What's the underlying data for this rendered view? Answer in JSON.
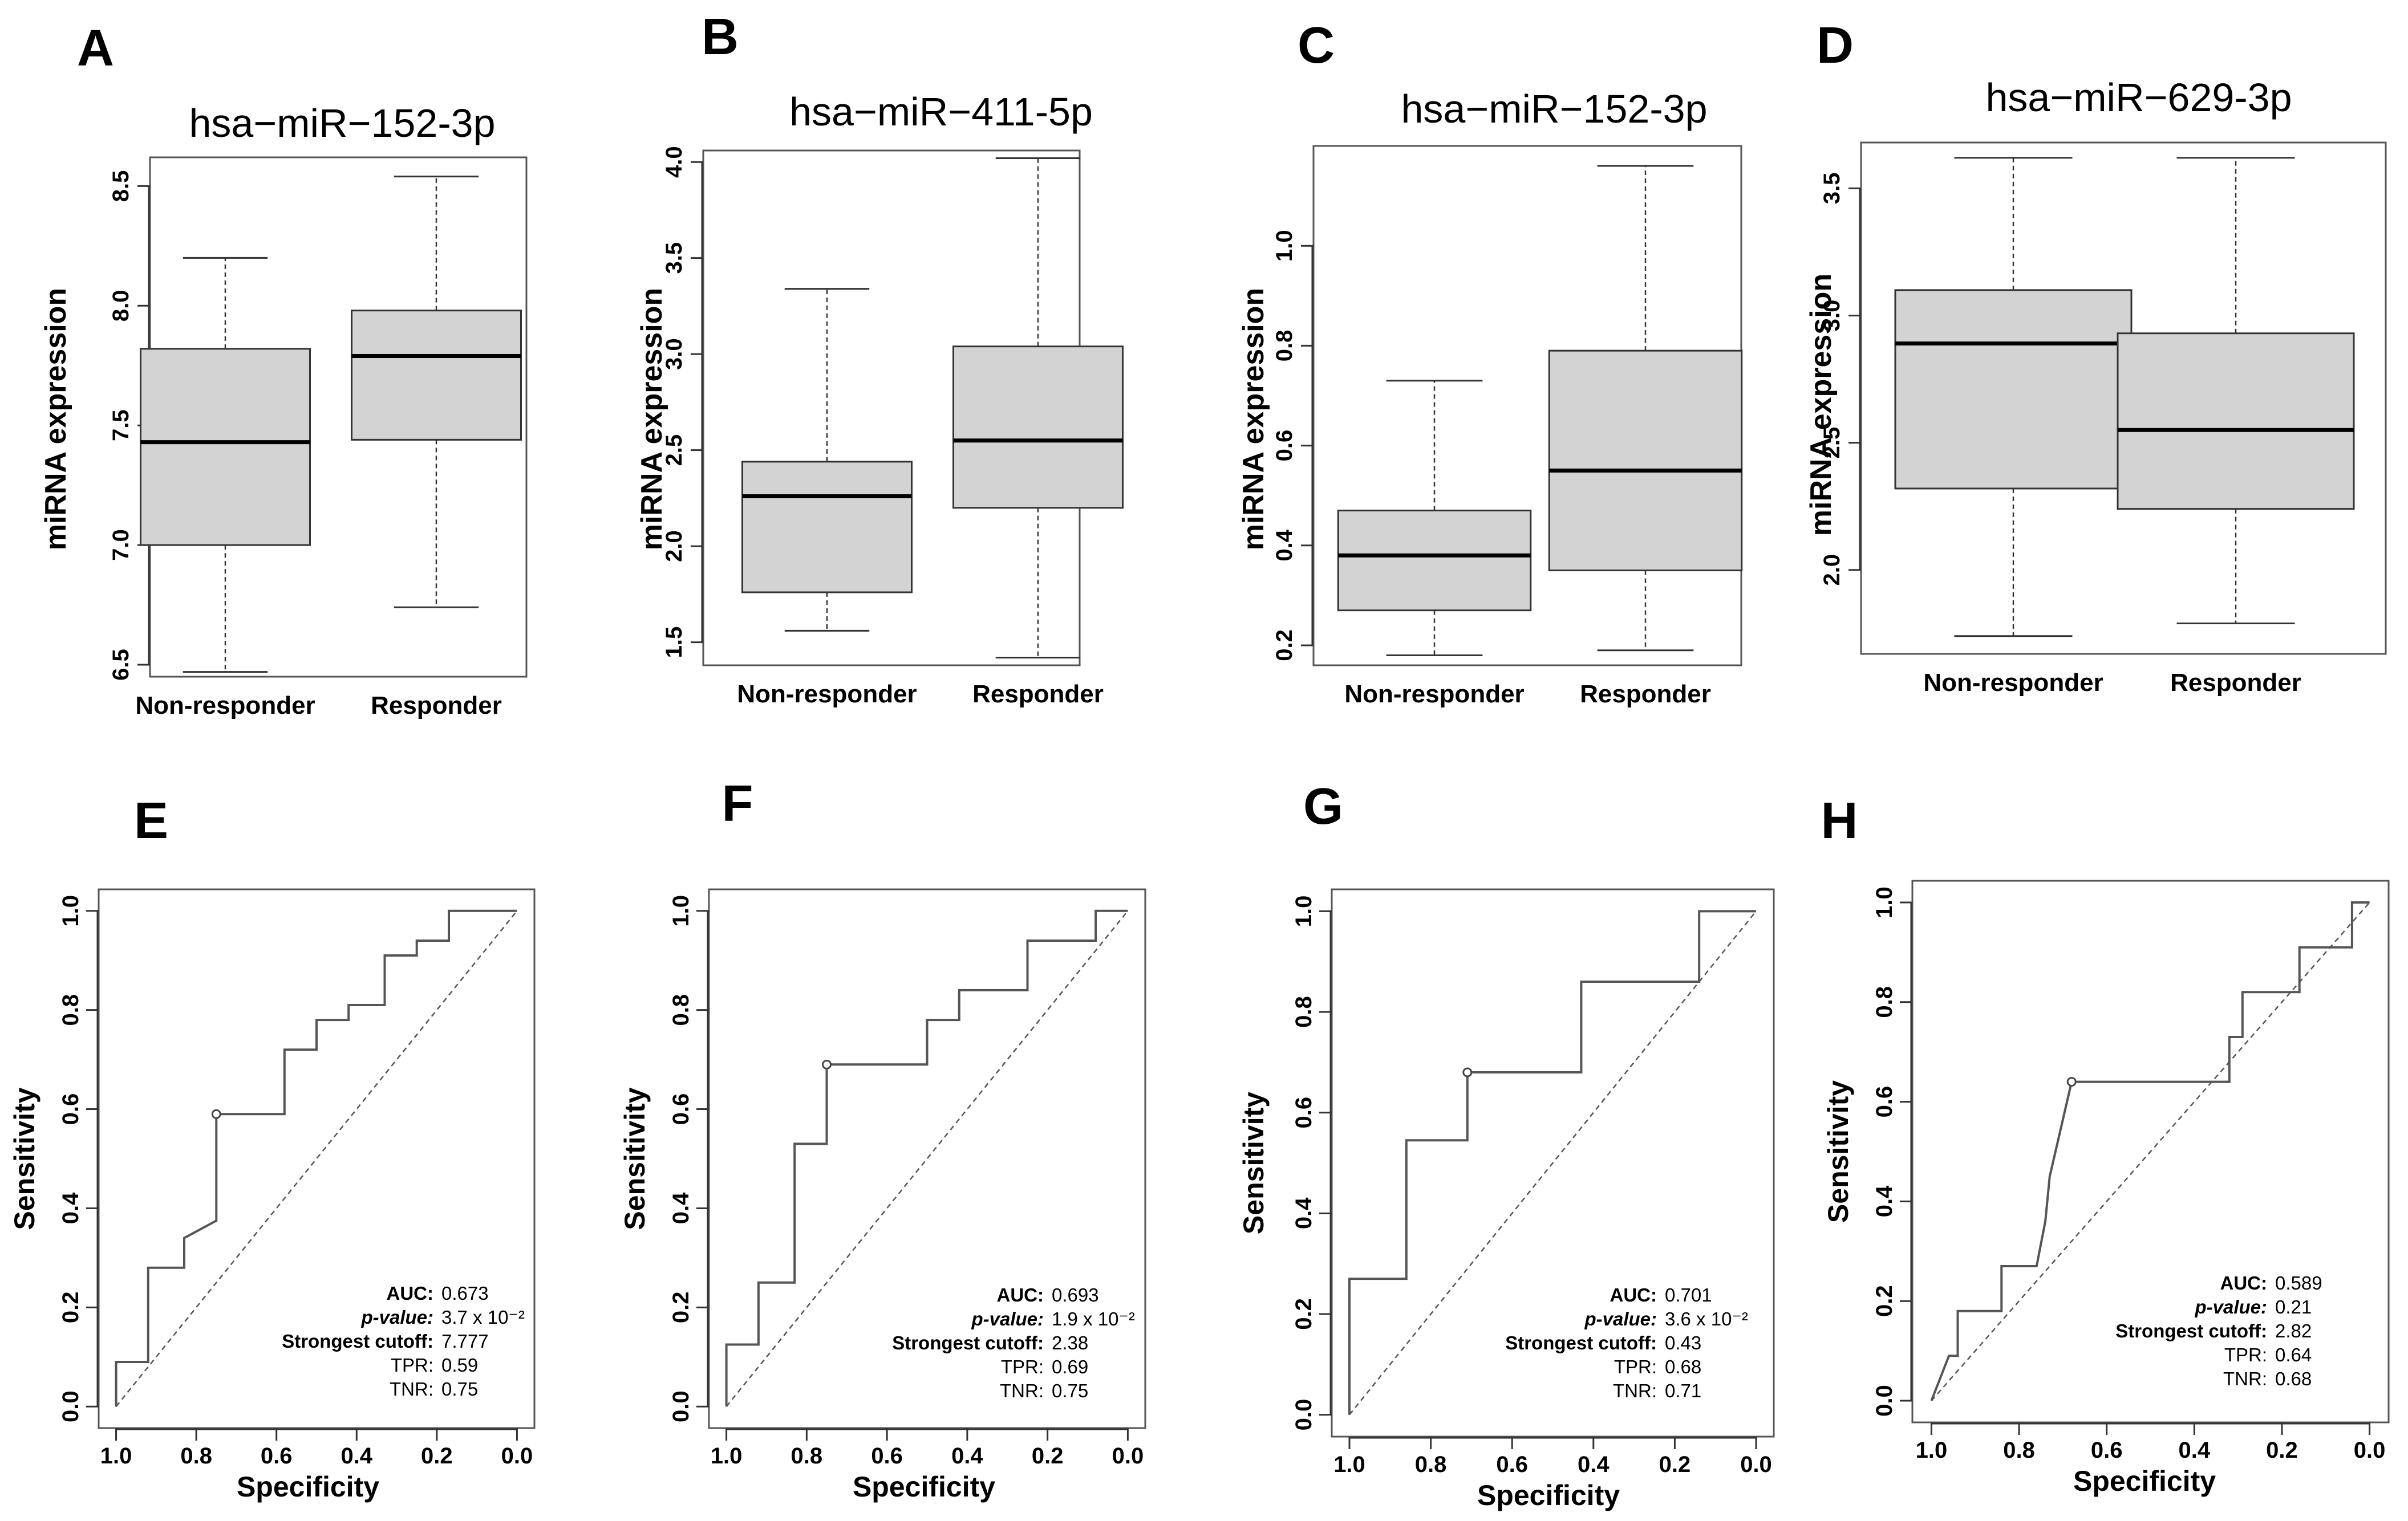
{
  "chart_data": [
    {
      "panel": "A",
      "type": "box",
      "title": "hsa−miR−152-3p",
      "ylabel": "miRNA expression",
      "ylim": [
        6.45,
        8.62
      ],
      "yticks": [
        6.5,
        7.0,
        7.5,
        8.0,
        8.5
      ],
      "ytick_labels": [
        "6.5",
        "7.0",
        "7.5",
        "8.0",
        "8.5"
      ],
      "categories": [
        "Non-responder",
        "Responder"
      ],
      "boxes": [
        {
          "min": 6.47,
          "q1": 7.0,
          "median": 7.43,
          "q3": 7.82,
          "max": 8.2
        },
        {
          "min": 6.74,
          "q1": 7.44,
          "median": 7.79,
          "q3": 7.98,
          "max": 8.54
        }
      ]
    },
    {
      "panel": "B",
      "type": "box",
      "title": "hsa−miR−411-5p",
      "ylabel": "miRNA expression",
      "ylim": [
        1.38,
        4.06
      ],
      "yticks": [
        1.5,
        2.0,
        2.5,
        3.0,
        3.5,
        4.0
      ],
      "ytick_labels": [
        "1.5",
        "2.0",
        "2.5",
        "3.0",
        "3.5",
        "4.0"
      ],
      "categories": [
        "Non-responder",
        "Responder"
      ],
      "boxes": [
        {
          "min": 1.56,
          "q1": 1.76,
          "median": 2.26,
          "q3": 2.44,
          "max": 3.34
        },
        {
          "min": 1.42,
          "q1": 2.2,
          "median": 2.55,
          "q3": 3.04,
          "max": 4.02
        }
      ]
    },
    {
      "panel": "C",
      "type": "box",
      "title": "hsa−miR−152-3p",
      "ylabel": "miRNA expression",
      "ylim": [
        0.16,
        1.2
      ],
      "yticks": [
        0.2,
        0.4,
        0.6,
        0.8,
        1.0
      ],
      "ytick_labels": [
        "0.2",
        "0.4",
        "0.6",
        "0.8",
        "1.0"
      ],
      "categories": [
        "Non-responder",
        "Responder"
      ],
      "boxes": [
        {
          "min": 0.18,
          "q1": 0.27,
          "median": 0.38,
          "q3": 0.47,
          "max": 0.73
        },
        {
          "min": 0.19,
          "q1": 0.35,
          "median": 0.55,
          "q3": 0.79,
          "max": 1.16
        }
      ]
    },
    {
      "panel": "D",
      "type": "box",
      "title": "hsa−miR−629-3p",
      "ylabel": "miRNA expression",
      "ylim": [
        1.67,
        3.68
      ],
      "yticks": [
        2.0,
        2.5,
        3.0,
        3.5
      ],
      "ytick_labels": [
        "2.0",
        "2.5",
        "3.0",
        "3.5"
      ],
      "categories": [
        "Non-responder",
        "Responder"
      ],
      "boxes": [
        {
          "min": 1.74,
          "q1": 2.32,
          "median": 2.89,
          "q3": 3.1,
          "max": 3.62
        },
        {
          "min": 1.79,
          "q1": 2.24,
          "median": 2.55,
          "q3": 2.93,
          "max": 3.62
        }
      ]
    },
    {
      "panel": "E",
      "type": "line",
      "subtype": "roc",
      "xlabel": "Specificity",
      "ylabel": "Sensitivity",
      "xlim": [
        1.0,
        0.0
      ],
      "ylim": [
        0.0,
        1.0
      ],
      "ticks": [
        0.0,
        0.2,
        0.4,
        0.6,
        0.8,
        1.0
      ],
      "tick_labels": [
        "0.0",
        "0.2",
        "0.4",
        "0.6",
        "0.8",
        "1.0"
      ],
      "curve_specificity": [
        1.0,
        1.0,
        0.92,
        0.92,
        0.83,
        0.83,
        0.75,
        0.75,
        0.58,
        0.58,
        0.5,
        0.5,
        0.42,
        0.42,
        0.33,
        0.33,
        0.25,
        0.25,
        0.17,
        0.17,
        0.0
      ],
      "curve_sensitivity": [
        0.0,
        0.09,
        0.09,
        0.28,
        0.28,
        0.34,
        0.375,
        0.59,
        0.59,
        0.72,
        0.72,
        0.78,
        0.78,
        0.81,
        0.81,
        0.91,
        0.91,
        0.94,
        0.94,
        1.0,
        1.0
      ],
      "cutoff_point": [
        0.75,
        0.59
      ],
      "stats": [
        {
          "label": "AUC:",
          "value": "0.673"
        },
        {
          "label": "p-value:",
          "value": "3.7 x 10⁻²"
        },
        {
          "label": "Strongest cutoff:",
          "value": "7.777"
        },
        {
          "label": "TPR:",
          "value": "0.59"
        },
        {
          "label": "TNR:",
          "value": "0.75"
        }
      ]
    },
    {
      "panel": "F",
      "type": "line",
      "subtype": "roc",
      "xlabel": "Specificity",
      "ylabel": "Sensitivity",
      "xlim": [
        1.0,
        0.0
      ],
      "ylim": [
        0.0,
        1.0
      ],
      "ticks": [
        0.0,
        0.2,
        0.4,
        0.6,
        0.8,
        1.0
      ],
      "tick_labels": [
        "0.0",
        "0.2",
        "0.4",
        "0.6",
        "0.8",
        "1.0"
      ],
      "curve_specificity": [
        1.0,
        1.0,
        0.92,
        0.92,
        0.83,
        0.83,
        0.75,
        0.75,
        0.5,
        0.5,
        0.42,
        0.42,
        0.25,
        0.25,
        0.08,
        0.08,
        0.0
      ],
      "curve_specificity_note": "",
      "curve_sensitivity": [
        0.0,
        0.125,
        0.125,
        0.25,
        0.25,
        0.53,
        0.53,
        0.69,
        0.69,
        0.78,
        0.78,
        0.84,
        0.84,
        0.94,
        0.94,
        1.0,
        1.0
      ],
      "cutoff_point": [
        0.75,
        0.69
      ],
      "stats": [
        {
          "label": "AUC:",
          "value": "0.693"
        },
        {
          "label": "p-value:",
          "value": "1.9 x 10⁻²"
        },
        {
          "label": "Strongest cutoff:",
          "value": "2.38"
        },
        {
          "label": "TPR:",
          "value": "0.69"
        },
        {
          "label": "TNR:",
          "value": "0.75"
        }
      ]
    },
    {
      "panel": "G",
      "type": "line",
      "subtype": "roc",
      "xlabel": "Specificity",
      "ylabel": "Sensitivity",
      "xlim": [
        1.0,
        0.0
      ],
      "ylim": [
        0.0,
        1.0
      ],
      "ticks": [
        0.0,
        0.2,
        0.4,
        0.6,
        0.8,
        1.0
      ],
      "tick_labels": [
        "0.0",
        "0.2",
        "0.4",
        "0.6",
        "0.8",
        "1.0"
      ],
      "curve_specificity": [
        1.0,
        1.0,
        0.86,
        0.86,
        0.71,
        0.71,
        0.43,
        0.43,
        0.14,
        0.14,
        0.0
      ],
      "curve_sensitivity": [
        0.0,
        0.27,
        0.27,
        0.545,
        0.545,
        0.68,
        0.68,
        0.86,
        0.86,
        1.0,
        1.0
      ],
      "cutoff_point": [
        0.71,
        0.68
      ],
      "stats": [
        {
          "label": "AUC:",
          "value": "0.701"
        },
        {
          "label": "p-value:",
          "value": "3.6 x 10⁻²"
        },
        {
          "label": "Strongest cutoff:",
          "value": "0.43"
        },
        {
          "label": "TPR:",
          "value": "0.68"
        },
        {
          "label": "TNR:",
          "value": "0.71"
        }
      ]
    },
    {
      "panel": "H",
      "type": "line",
      "subtype": "roc",
      "xlabel": "Specificity",
      "ylabel": "Sensitivity",
      "xlim": [
        1.0,
        0.0
      ],
      "ylim": [
        0.0,
        1.0
      ],
      "ticks": [
        0.0,
        0.2,
        0.4,
        0.6,
        0.8,
        1.0
      ],
      "tick_labels": [
        "0.0",
        "0.2",
        "0.4",
        "0.6",
        "0.8",
        "1.0"
      ],
      "curve_specificity": [
        1.0,
        0.96,
        0.94,
        0.94,
        0.84,
        0.84,
        0.76,
        0.74,
        0.73,
        0.68,
        0.32,
        0.32,
        0.29,
        0.29,
        0.16,
        0.16,
        0.04,
        0.04,
        0.0
      ],
      "curve_sensitivity": [
        0.0,
        0.09,
        0.09,
        0.18,
        0.18,
        0.27,
        0.27,
        0.36,
        0.45,
        0.64,
        0.64,
        0.73,
        0.73,
        0.82,
        0.82,
        0.91,
        0.91,
        1.0,
        1.0
      ],
      "cutoff_point": [
        0.68,
        0.64
      ],
      "stats": [
        {
          "label": "AUC:",
          "value": "0.589"
        },
        {
          "label": "p-value:",
          "value": "0.21"
        },
        {
          "label": "Strongest cutoff:",
          "value": "2.82"
        },
        {
          "label": "TPR:",
          "value": "0.64"
        },
        {
          "label": "TNR:",
          "value": "0.68"
        }
      ]
    }
  ]
}
